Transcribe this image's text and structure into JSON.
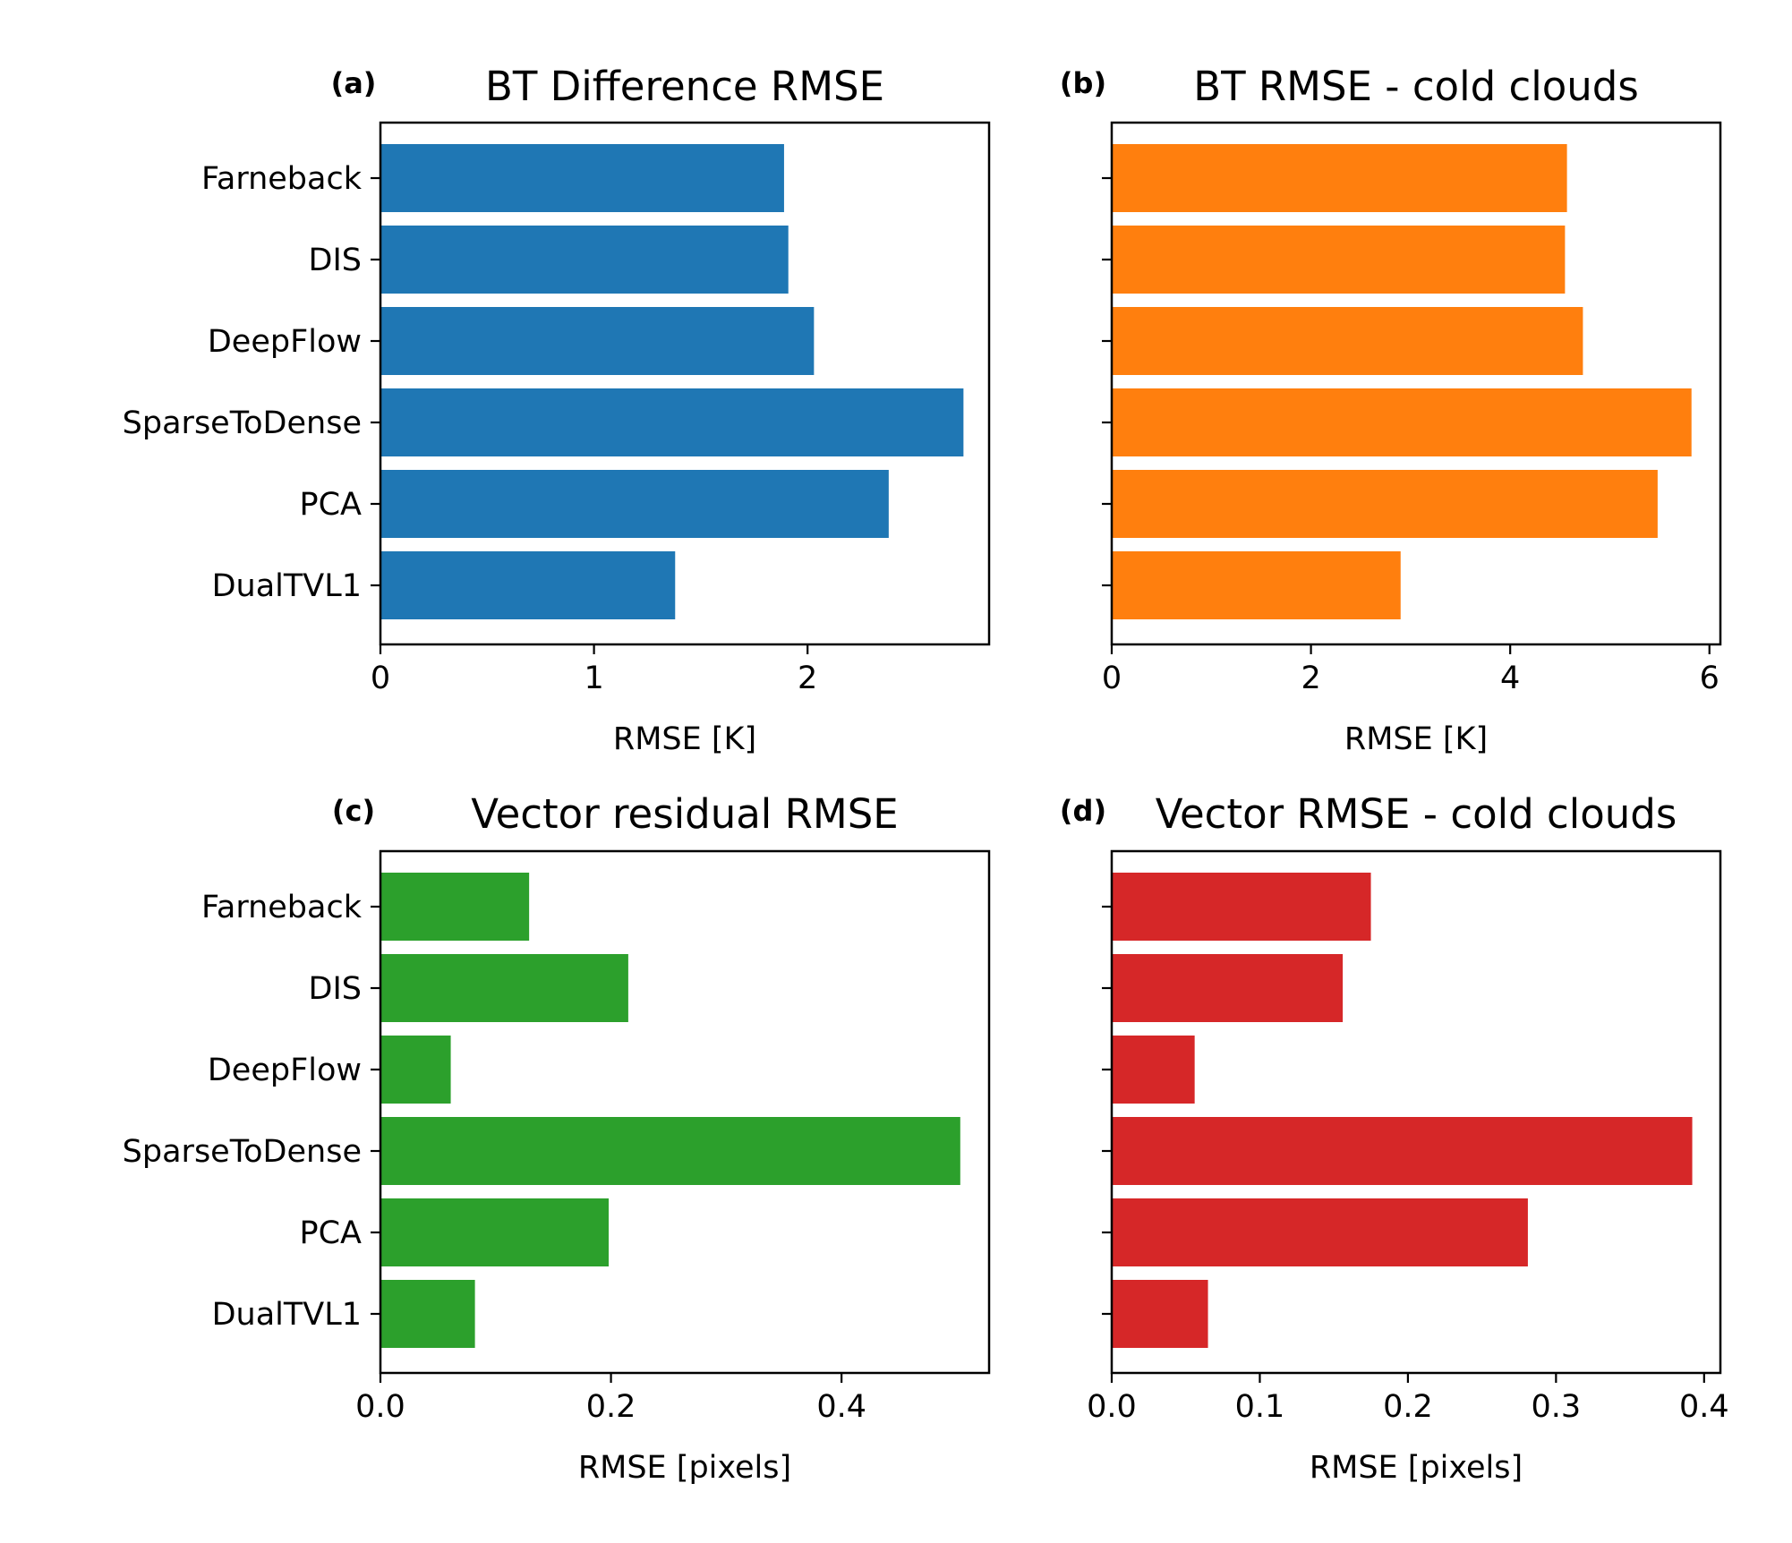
{
  "chart_data": [
    {
      "type": "bar",
      "orientation": "horizontal",
      "panel_label": "(a)",
      "title": "BT Difference RMSE",
      "xlabel": "RMSE [K]",
      "ylabel": "",
      "categories": [
        "Farneback",
        "DIS",
        "DeepFlow",
        "SparseToDense",
        "PCA",
        "DualTVL1"
      ],
      "values": [
        1.89,
        1.91,
        2.03,
        2.73,
        2.38,
        1.38
      ],
      "xlim": [
        0,
        2.85
      ],
      "xticks": [
        0,
        1,
        2
      ],
      "xtick_labels": [
        "0",
        "1",
        "2"
      ],
      "show_category_labels": true,
      "color": "#1f77b4",
      "grid": false
    },
    {
      "type": "bar",
      "orientation": "horizontal",
      "panel_label": "(b)",
      "title": "BT RMSE - cold clouds",
      "xlabel": "RMSE [K]",
      "ylabel": "",
      "categories": [
        "Farneback",
        "DIS",
        "DeepFlow",
        "SparseToDense",
        "PCA",
        "DualTVL1"
      ],
      "values": [
        4.57,
        4.55,
        4.73,
        5.82,
        5.48,
        2.9
      ],
      "xlim": [
        0,
        6.11
      ],
      "xticks": [
        0,
        2,
        4,
        6
      ],
      "xtick_labels": [
        "0",
        "2",
        "4",
        "6"
      ],
      "show_category_labels": false,
      "color": "#ff7f0e",
      "grid": false
    },
    {
      "type": "bar",
      "orientation": "horizontal",
      "panel_label": "(c)",
      "title": "Vector residual RMSE",
      "xlabel": "RMSE [pixels]",
      "ylabel": "",
      "categories": [
        "Farneback",
        "DIS",
        "DeepFlow",
        "SparseToDense",
        "PCA",
        "DualTVL1"
      ],
      "values": [
        0.129,
        0.215,
        0.061,
        0.503,
        0.198,
        0.082
      ],
      "xlim": [
        0,
        0.528
      ],
      "xticks": [
        0.0,
        0.2,
        0.4
      ],
      "xtick_labels": [
        "0.0",
        "0.2",
        "0.4"
      ],
      "show_category_labels": true,
      "color": "#2ca02c",
      "grid": false
    },
    {
      "type": "bar",
      "orientation": "horizontal",
      "panel_label": "(d)",
      "title": "Vector RMSE - cold clouds",
      "xlabel": "RMSE [pixels]",
      "ylabel": "",
      "categories": [
        "Farneback",
        "DIS",
        "DeepFlow",
        "SparseToDense",
        "PCA",
        "DualTVL1"
      ],
      "values": [
        0.175,
        0.156,
        0.056,
        0.392,
        0.281,
        0.065
      ],
      "xlim": [
        0,
        0.411
      ],
      "xticks": [
        0.0,
        0.1,
        0.2,
        0.3,
        0.4
      ],
      "xtick_labels": [
        "0.0",
        "0.1",
        "0.2",
        "0.3",
        "0.4"
      ],
      "show_category_labels": false,
      "color": "#d62728",
      "grid": false
    }
  ]
}
